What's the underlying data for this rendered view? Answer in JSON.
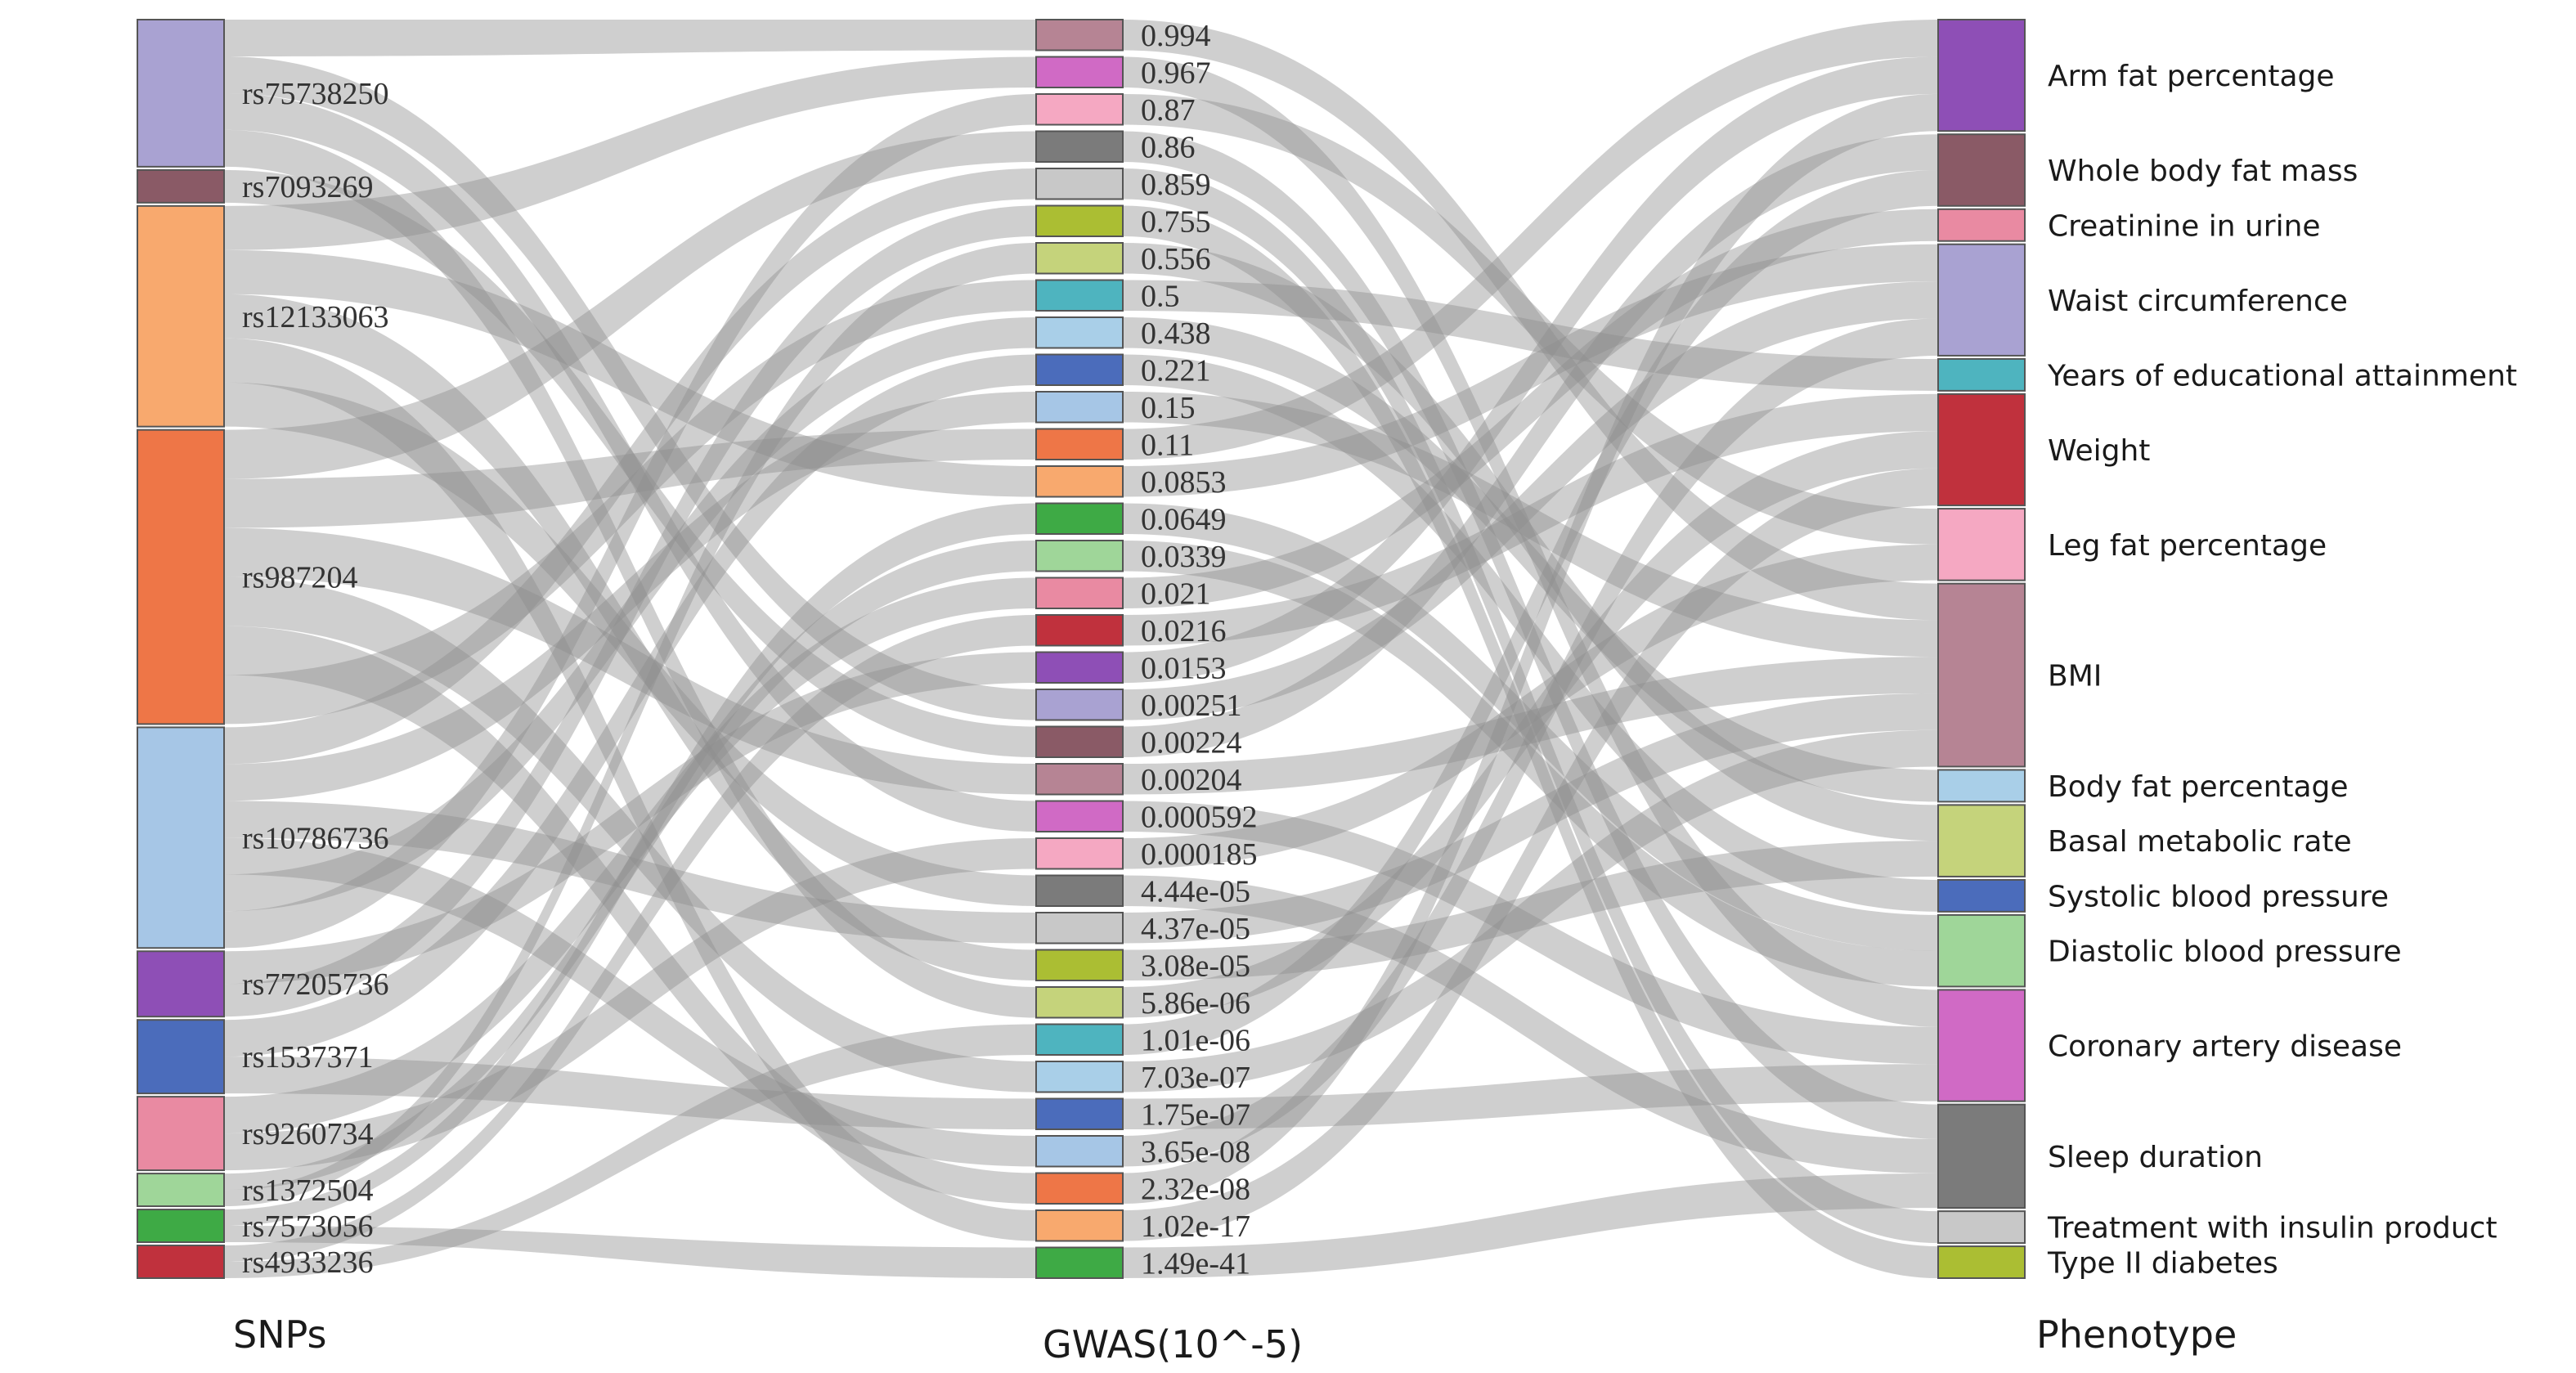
{
  "chart_data": {
    "type": "sankey",
    "columns": [
      {
        "key": "snps",
        "title": "SNPs"
      },
      {
        "key": "gwas",
        "title": "GWAS(10^-5)"
      },
      {
        "key": "phen",
        "title": "Phenotype"
      }
    ],
    "snps": [
      {
        "name": "rs75738250",
        "value": 18,
        "color": "#a9a2d2"
      },
      {
        "name": "rs7093269",
        "value": 4,
        "color": "#8a5a66"
      },
      {
        "name": "rs12133063",
        "value": 27,
        "color": "#f8a96e"
      },
      {
        "name": "rs987204",
        "value": 36,
        "color": "#ee7647"
      },
      {
        "name": "rs10786736",
        "value": 27,
        "color": "#a6c6e6"
      },
      {
        "name": "rs77205736",
        "value": 8,
        "color": "#8e4fb6"
      },
      {
        "name": "rs1537371",
        "value": 9,
        "color": "#4b6cbb"
      },
      {
        "name": "rs9260734",
        "value": 9,
        "color": "#e98aa2"
      },
      {
        "name": "rs1372504",
        "value": 4,
        "color": "#9fd699"
      },
      {
        "name": "rs7573056",
        "value": 4,
        "color": "#3eaa45"
      },
      {
        "name": "rs4933236",
        "value": 4,
        "color": "#c0313d"
      }
    ],
    "gwas": [
      {
        "name": "0.994",
        "color": "#b68494"
      },
      {
        "name": "0.967",
        "color": "#d06ac5"
      },
      {
        "name": "0.87",
        "color": "#f5a8c2"
      },
      {
        "name": "0.86",
        "color": "#7b7b7b"
      },
      {
        "name": "0.859",
        "color": "#c8c8c8"
      },
      {
        "name": "0.755",
        "color": "#abbe33"
      },
      {
        "name": "0.556",
        "color": "#c5d37b"
      },
      {
        "name": "0.5",
        "color": "#4eb4bf"
      },
      {
        "name": "0.438",
        "color": "#a9cfe8"
      },
      {
        "name": "0.221",
        "color": "#4b6cbb"
      },
      {
        "name": "0.15",
        "color": "#a6c6e6"
      },
      {
        "name": "0.11",
        "color": "#ee7647"
      },
      {
        "name": "0.0853",
        "color": "#f8a96e"
      },
      {
        "name": "0.0649",
        "color": "#3eaa45"
      },
      {
        "name": "0.0339",
        "color": "#9fd699"
      },
      {
        "name": "0.021",
        "color": "#e98aa2"
      },
      {
        "name": "0.0216",
        "color": "#c0313d"
      },
      {
        "name": "0.0153",
        "color": "#8e4fb6"
      },
      {
        "name": "0.00251",
        "color": "#a9a2d2"
      },
      {
        "name": "0.00224",
        "color": "#8a5a66"
      },
      {
        "name": "0.00204",
        "color": "#b68494"
      },
      {
        "name": "0.000592",
        "color": "#d06ac5"
      },
      {
        "name": "0.000185",
        "color": "#f5a8c2"
      },
      {
        "name": "4.44e-05",
        "color": "#7b7b7b"
      },
      {
        "name": "4.37e-05",
        "color": "#c8c8c8"
      },
      {
        "name": "3.08e-05",
        "color": "#abbe33"
      },
      {
        "name": "5.86e-06",
        "color": "#c5d37b"
      },
      {
        "name": "1.01e-06",
        "color": "#4eb4bf"
      },
      {
        "name": "7.03e-07",
        "color": "#a9cfe8"
      },
      {
        "name": "1.75e-07",
        "color": "#4b6cbb"
      },
      {
        "name": "3.65e-08",
        "color": "#a6c6e6"
      },
      {
        "name": "2.32e-08",
        "color": "#ee7647"
      },
      {
        "name": "1.02e-17",
        "color": "#f8a96e"
      },
      {
        "name": "1.49e-41",
        "color": "#3eaa45"
      }
    ],
    "phen": [
      {
        "name": "Arm fat percentage",
        "value": 14,
        "color": "#8e4fb6"
      },
      {
        "name": "Whole body fat mass",
        "value": 9,
        "color": "#8a5a66"
      },
      {
        "name": "Creatinine in urine",
        "value": 4,
        "color": "#e98aa2"
      },
      {
        "name": "Waist circumference",
        "value": 14,
        "color": "#a9a2d2"
      },
      {
        "name": "Years of educational attainment",
        "value": 4,
        "color": "#4eb4bf"
      },
      {
        "name": "Weight",
        "value": 14,
        "color": "#c0313d"
      },
      {
        "name": "Leg fat percentage",
        "value": 9,
        "color": "#f5a8c2"
      },
      {
        "name": "BMI",
        "value": 23,
        "color": "#b68494"
      },
      {
        "name": "Body fat percentage",
        "value": 4,
        "color": "#a9cfe8"
      },
      {
        "name": "Basal metabolic rate",
        "value": 9,
        "color": "#c5d37b"
      },
      {
        "name": "Systolic blood pressure",
        "value": 4,
        "color": "#4b6cbb"
      },
      {
        "name": "Diastolic blood pressure",
        "value": 9,
        "color": "#9fd699"
      },
      {
        "name": "Coronary artery disease",
        "value": 14,
        "color": "#d06ac5"
      },
      {
        "name": "Sleep duration",
        "value": 13,
        "color": "#7b7b7b"
      },
      {
        "name": "Treatment with insulin product",
        "value": 4,
        "color": "#c8c8c8"
      },
      {
        "name": "Type II diabetes",
        "value": 4,
        "color": "#abbe33"
      }
    ],
    "links_snp_gwas": [
      [
        0,
        0
      ],
      [
        0,
        18
      ],
      [
        0,
        21
      ],
      [
        0,
        26
      ],
      [
        1,
        19
      ],
      [
        2,
        1
      ],
      [
        2,
        12
      ],
      [
        2,
        25
      ],
      [
        2,
        32
      ],
      [
        3,
        3
      ],
      [
        3,
        11
      ],
      [
        3,
        20
      ],
      [
        3,
        28
      ],
      [
        3,
        31
      ],
      [
        4,
        4
      ],
      [
        4,
        10
      ],
      [
        4,
        24
      ],
      [
        4,
        30
      ],
      [
        4,
        8
      ],
      [
        5,
        17
      ],
      [
        5,
        5
      ],
      [
        6,
        9
      ],
      [
        6,
        29
      ],
      [
        7,
        15
      ],
      [
        7,
        22
      ],
      [
        8,
        14
      ],
      [
        8,
        6
      ],
      [
        9,
        13
      ],
      [
        9,
        33
      ],
      [
        10,
        16
      ],
      [
        10,
        27
      ],
      [
        4,
        2
      ],
      [
        3,
        7
      ],
      [
        2,
        23
      ]
    ],
    "links_gwas_phen": [
      [
        0,
        7
      ],
      [
        1,
        12
      ],
      [
        2,
        6
      ],
      [
        3,
        13
      ],
      [
        4,
        14
      ],
      [
        5,
        15
      ],
      [
        6,
        9
      ],
      [
        7,
        4
      ],
      [
        8,
        8
      ],
      [
        9,
        10
      ],
      [
        10,
        7
      ],
      [
        11,
        0
      ],
      [
        12,
        3
      ],
      [
        13,
        11
      ],
      [
        14,
        11
      ],
      [
        15,
        2
      ],
      [
        16,
        5
      ],
      [
        17,
        0
      ],
      [
        18,
        3
      ],
      [
        19,
        1
      ],
      [
        20,
        7
      ],
      [
        21,
        12
      ],
      [
        22,
        6
      ],
      [
        23,
        13
      ],
      [
        24,
        7
      ],
      [
        25,
        9
      ],
      [
        26,
        5
      ],
      [
        27,
        1
      ],
      [
        28,
        7
      ],
      [
        29,
        12
      ],
      [
        30,
        3
      ],
      [
        31,
        0
      ],
      [
        32,
        5
      ],
      [
        33,
        13
      ]
    ]
  }
}
